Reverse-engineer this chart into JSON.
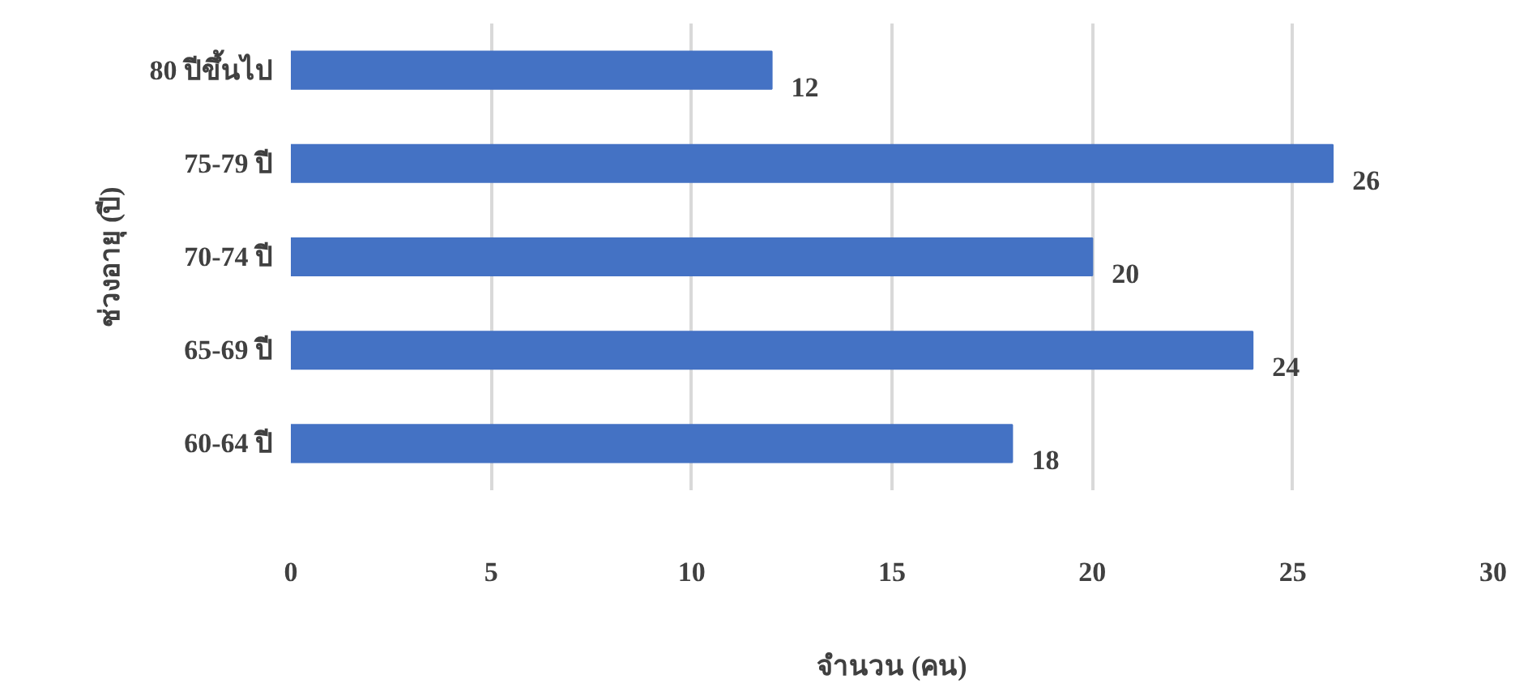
{
  "chart_data": {
    "type": "bar",
    "orientation": "horizontal",
    "xlabel": "จำนวน (คน)",
    "ylabel": "ช่วงอายุ (ปี)",
    "categories": [
      "80 ปีขึ้นไป",
      "75-79 ปี",
      "70-74 ปี",
      "65-69 ปี",
      "60-64 ปี"
    ],
    "values": [
      12,
      26,
      20,
      24,
      18
    ],
    "color": "#4472c4",
    "xlim": [
      0,
      30
    ],
    "xticks": [
      0,
      5,
      10,
      15,
      20,
      25,
      30
    ],
    "grid": "x",
    "data_labels": true
  }
}
